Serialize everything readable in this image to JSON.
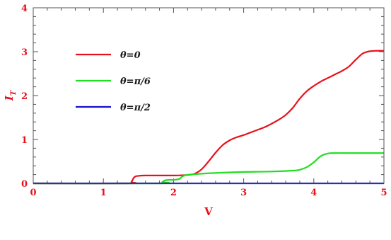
{
  "chart_data": {
    "type": "line",
    "xlabel": "V",
    "ylabel_main": "I",
    "ylabel_sub": "T",
    "xlim": [
      0,
      5
    ],
    "ylim": [
      0,
      4
    ],
    "x_ticks": [
      "0",
      "1",
      "2",
      "3",
      "4",
      "5"
    ],
    "y_ticks": [
      "0",
      "1",
      "2",
      "3",
      "4"
    ],
    "legend_position": "top-left",
    "grid": false,
    "series": [
      {
        "name": "θ=0",
        "color": "#e8101a",
        "x": [
          0,
          1.35,
          1.4,
          1.43,
          1.46,
          1.5,
          1.6,
          2.0,
          2.2,
          2.3,
          2.4,
          2.5,
          2.6,
          2.7,
          2.8,
          2.9,
          3.0,
          3.1,
          3.2,
          3.3,
          3.4,
          3.5,
          3.6,
          3.7,
          3.8,
          3.9,
          4.0,
          4.1,
          4.2,
          4.3,
          4.4,
          4.5,
          4.6,
          4.7,
          4.8,
          4.9,
          5.0
        ],
        "y": [
          0,
          0,
          0.03,
          0.12,
          0.16,
          0.17,
          0.18,
          0.18,
          0.19,
          0.22,
          0.32,
          0.5,
          0.7,
          0.87,
          0.98,
          1.05,
          1.1,
          1.16,
          1.22,
          1.28,
          1.36,
          1.45,
          1.56,
          1.72,
          1.93,
          2.1,
          2.22,
          2.32,
          2.4,
          2.48,
          2.56,
          2.66,
          2.82,
          2.96,
          3.01,
          3.02,
          3.02
        ]
      },
      {
        "name": "θ=π/6",
        "color": "#22dd22",
        "x": [
          0,
          1.8,
          1.84,
          1.88,
          1.95,
          2.0,
          2.08,
          2.13,
          2.18,
          2.3,
          2.5,
          2.8,
          3.0,
          3.4,
          3.7,
          3.8,
          3.9,
          4.0,
          4.1,
          4.2,
          4.3,
          4.5,
          5.0
        ],
        "y": [
          0,
          0,
          0.03,
          0.07,
          0.08,
          0.08,
          0.1,
          0.16,
          0.19,
          0.21,
          0.23,
          0.25,
          0.26,
          0.27,
          0.29,
          0.31,
          0.37,
          0.48,
          0.62,
          0.68,
          0.69,
          0.69,
          0.69
        ]
      },
      {
        "name": "θ=π/2",
        "color": "#1212cc",
        "x": [
          0,
          5
        ],
        "y": [
          0,
          0
        ]
      }
    ]
  }
}
